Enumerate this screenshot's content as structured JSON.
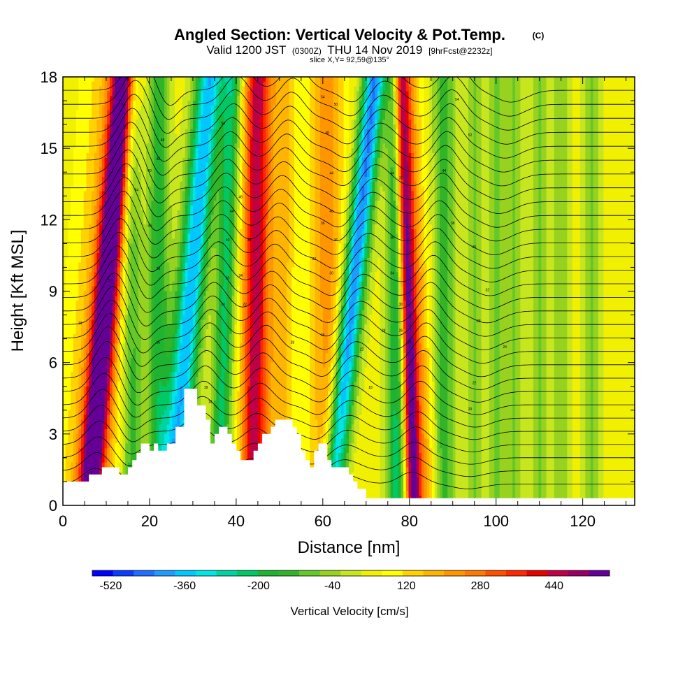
{
  "chart_data": {
    "type": "heatmap",
    "title": "Angled Section: Vertical Velocity & Pot.Temp.",
    "title_unit": "(C)",
    "subtitle": {
      "valid": "Valid 1200 JST",
      "utc": "(0300Z)",
      "date": "THU 14 Nov 2019",
      "fcst": "[9hrFcst@2232z]"
    },
    "slice_label": "slice X,Y= 92,59@135°",
    "xlabel": "Distance [nm]",
    "ylabel": "Height [Kft MSL]",
    "xlim": [
      0,
      132
    ],
    "ylim": [
      0,
      18
    ],
    "x_ticks": [
      {
        "value": 0,
        "label": "0"
      },
      {
        "value": 20,
        "label": "20"
      },
      {
        "value": 40,
        "label": "40"
      },
      {
        "value": 60,
        "label": "60"
      },
      {
        "value": 80,
        "label": "80"
      },
      {
        "value": 100,
        "label": "100"
      },
      {
        "value": 120,
        "label": "120"
      }
    ],
    "y_ticks": [
      {
        "value": 0,
        "label": "0"
      },
      {
        "value": 3,
        "label": "3"
      },
      {
        "value": 6,
        "label": "6"
      },
      {
        "value": 9,
        "label": "9"
      },
      {
        "value": 12,
        "label": "12"
      },
      {
        "value": 15,
        "label": "15"
      },
      {
        "value": 18,
        "label": "18"
      }
    ],
    "colorbar": {
      "label": "Vertical Velocity [cm/s]",
      "min": -560,
      "max": 560,
      "colors": [
        "#0000ff",
        "#0a3cff",
        "#1e6eff",
        "#1e9bff",
        "#00c8ff",
        "#00e6e6",
        "#00d2a0",
        "#00c864",
        "#1eb432",
        "#32b428",
        "#64c828",
        "#96d21e",
        "#c8e61e",
        "#f0f000",
        "#ffff00",
        "#ffd200",
        "#ffb400",
        "#ff9600",
        "#ff7800",
        "#ff5000",
        "#ff2800",
        "#e60000",
        "#be0046",
        "#960064",
        "#640096"
      ],
      "tick_labels": [
        {
          "value": -520,
          "label": "-520"
        },
        {
          "value": -360,
          "label": "-360"
        },
        {
          "value": -200,
          "label": "-200"
        },
        {
          "value": -40,
          "label": "-40"
        },
        {
          "value": 120,
          "label": "120"
        },
        {
          "value": 280,
          "label": "280"
        },
        {
          "value": 440,
          "label": "440"
        }
      ]
    },
    "velocity_bands": [
      {
        "x0": 6,
        "x1": 14,
        "width": 2.6,
        "amp": 540
      },
      {
        "x0": 6,
        "x1": 13,
        "width": 7,
        "amp": 150
      },
      {
        "x0": 16,
        "x1": 16,
        "width": 2.5,
        "amp": -200
      },
      {
        "x0": 22,
        "x1": 22,
        "width": 2.5,
        "amp": -220
      },
      {
        "x0": 25,
        "x1": 34,
        "width": 3.2,
        "amp": -420
      },
      {
        "x0": 36,
        "x1": 39,
        "width": 2.2,
        "amp": -260
      },
      {
        "x0": 44,
        "x1": 45,
        "width": 3.0,
        "amp": 420
      },
      {
        "x0": 50,
        "x1": 51,
        "width": 3.0,
        "amp": 140
      },
      {
        "x0": 61,
        "x1": 61,
        "width": 4.0,
        "amp": 180
      },
      {
        "x0": 62,
        "x1": 72,
        "width": 2.6,
        "amp": -470
      },
      {
        "x0": 77,
        "x1": 77,
        "width": 2.2,
        "amp": -260
      },
      {
        "x0": 81,
        "x1": 78,
        "width": 1.8,
        "amp": 500
      },
      {
        "x0": 84,
        "x1": 80,
        "width": 2.5,
        "amp": 150
      },
      {
        "x0": 88,
        "x1": 88,
        "width": 2.5,
        "amp": -180
      },
      {
        "x0": 95,
        "x1": 95,
        "width": 1.8,
        "amp": -110
      },
      {
        "x0": 100,
        "x1": 100,
        "width": 1.8,
        "amp": -120
      },
      {
        "x0": 104,
        "x1": 104,
        "width": 1.8,
        "amp": -110
      },
      {
        "x0": 110,
        "x1": 110,
        "width": 2.0,
        "amp": -110
      },
      {
        "x0": 115,
        "x1": 115,
        "width": 1.8,
        "amp": -100
      },
      {
        "x0": 122,
        "x1": 122,
        "width": 2.0,
        "amp": -110
      }
    ],
    "terrain": [
      [
        0,
        1.0
      ],
      [
        6,
        1.0
      ],
      [
        6,
        1.3
      ],
      [
        9,
        1.3
      ],
      [
        9,
        1.6
      ],
      [
        13,
        1.6
      ],
      [
        13,
        1.3
      ],
      [
        15,
        1.3
      ],
      [
        15,
        1.6
      ],
      [
        16,
        1.6
      ],
      [
        16,
        1.9
      ],
      [
        17,
        1.9
      ],
      [
        17,
        2.2
      ],
      [
        18,
        2.2
      ],
      [
        18,
        2.6
      ],
      [
        20,
        2.6
      ],
      [
        20,
        2.3
      ],
      [
        21,
        2.3
      ],
      [
        21,
        2.6
      ],
      [
        22,
        2.6
      ],
      [
        22,
        2.3
      ],
      [
        24,
        2.3
      ],
      [
        24,
        2.6
      ],
      [
        26,
        2.6
      ],
      [
        26,
        3.3
      ],
      [
        28,
        3.3
      ],
      [
        28,
        4.9
      ],
      [
        31,
        4.9
      ],
      [
        31,
        4.2
      ],
      [
        33,
        4.2
      ],
      [
        33,
        3.6
      ],
      [
        34,
        3.6
      ],
      [
        34,
        2.6
      ],
      [
        35,
        2.6
      ],
      [
        35,
        3.0
      ],
      [
        36,
        3.0
      ],
      [
        36,
        3.3
      ],
      [
        38,
        3.3
      ],
      [
        38,
        3.0
      ],
      [
        39,
        3.0
      ],
      [
        39,
        2.6
      ],
      [
        40,
        2.6
      ],
      [
        40,
        2.3
      ],
      [
        41,
        2.3
      ],
      [
        41,
        1.9
      ],
      [
        44,
        1.9
      ],
      [
        44,
        2.3
      ],
      [
        45,
        2.3
      ],
      [
        45,
        2.6
      ],
      [
        46,
        2.6
      ],
      [
        46,
        3.0
      ],
      [
        48,
        3.0
      ],
      [
        48,
        3.3
      ],
      [
        49,
        3.3
      ],
      [
        49,
        3.6
      ],
      [
        53,
        3.6
      ],
      [
        53,
        3.3
      ],
      [
        54,
        3.3
      ],
      [
        54,
        3.0
      ],
      [
        55,
        3.0
      ],
      [
        55,
        2.3
      ],
      [
        56,
        2.3
      ],
      [
        56,
        1.9
      ],
      [
        57,
        1.9
      ],
      [
        57,
        1.6
      ],
      [
        58,
        1.6
      ],
      [
        58,
        2.3
      ],
      [
        59,
        2.3
      ],
      [
        59,
        2.6
      ],
      [
        61,
        2.6
      ],
      [
        61,
        1.9
      ],
      [
        62,
        1.9
      ],
      [
        62,
        1.6
      ],
      [
        66,
        1.6
      ],
      [
        66,
        1.3
      ],
      [
        67,
        1.3
      ],
      [
        67,
        1.0
      ],
      [
        68,
        1.0
      ],
      [
        68,
        0.7
      ],
      [
        70,
        0.7
      ],
      [
        70,
        0.3
      ],
      [
        132,
        0.3
      ]
    ],
    "isentropes": {
      "count": 30,
      "base": 0.9,
      "spacing_low": 0.55,
      "spacing_growth": 0.035,
      "wave_centers": [
        {
          "x": 7,
          "amp": 1.6,
          "w": 4
        },
        {
          "x": 14,
          "amp": -0.7,
          "w": 3
        },
        {
          "x": 30,
          "amp": 1.2,
          "w": 4
        },
        {
          "x": 43,
          "amp": 1.1,
          "w": 4
        },
        {
          "x": 57,
          "amp": -0.6,
          "w": 4
        },
        {
          "x": 64,
          "amp": 1.0,
          "w": 5
        },
        {
          "x": 80,
          "amp": 1.2,
          "w": 4
        },
        {
          "x": 93,
          "amp": -0.5,
          "w": 5
        }
      ]
    },
    "contour_labels": [
      {
        "x": 14,
        "y": 16.8,
        "text": "54"
      },
      {
        "x": 23,
        "y": 15.3,
        "text": "48"
      },
      {
        "x": 22,
        "y": 14.5,
        "text": "42"
      },
      {
        "x": 20,
        "y": 14.0,
        "text": "40"
      },
      {
        "x": 14,
        "y": 13.8,
        "text": "36"
      },
      {
        "x": 17,
        "y": 13.2,
        "text": "34"
      },
      {
        "x": 20,
        "y": 11.7,
        "text": "30"
      },
      {
        "x": 22,
        "y": 9.9,
        "text": "28"
      },
      {
        "x": 11,
        "y": 9.4,
        "text": "24"
      },
      {
        "x": 4,
        "y": 7.6,
        "text": "18"
      },
      {
        "x": 22,
        "y": 6.8,
        "text": "16"
      },
      {
        "x": 37,
        "y": 16.0,
        "text": "54"
      },
      {
        "x": 41,
        "y": 12.9,
        "text": "48"
      },
      {
        "x": 39,
        "y": 12.3,
        "text": "44"
      },
      {
        "x": 38,
        "y": 11.1,
        "text": "40"
      },
      {
        "x": 43,
        "y": 11.1,
        "text": "38"
      },
      {
        "x": 41,
        "y": 9.6,
        "text": "34"
      },
      {
        "x": 38,
        "y": 9.5,
        "text": "30"
      },
      {
        "x": 37,
        "y": 8.4,
        "text": "26"
      },
      {
        "x": 42,
        "y": 8.4,
        "text": "22"
      },
      {
        "x": 33,
        "y": 4.9,
        "text": "18"
      },
      {
        "x": 34,
        "y": 4.3,
        "text": "18"
      },
      {
        "x": 60,
        "y": 17.1,
        "text": "54"
      },
      {
        "x": 63,
        "y": 16.8,
        "text": "50"
      },
      {
        "x": 61,
        "y": 15.6,
        "text": "48"
      },
      {
        "x": 62,
        "y": 13.9,
        "text": "44"
      },
      {
        "x": 62,
        "y": 12.3,
        "text": "40"
      },
      {
        "x": 60,
        "y": 11.8,
        "text": "36"
      },
      {
        "x": 63,
        "y": 11.1,
        "text": "36"
      },
      {
        "x": 58,
        "y": 10.3,
        "text": "32"
      },
      {
        "x": 62,
        "y": 9.7,
        "text": "30"
      },
      {
        "x": 53,
        "y": 6.8,
        "text": "28"
      },
      {
        "x": 60,
        "y": 7.1,
        "text": "26"
      },
      {
        "x": 69,
        "y": 6.5,
        "text": "22"
      },
      {
        "x": 71,
        "y": 4.9,
        "text": "18"
      },
      {
        "x": 76,
        "y": 13.9,
        "text": "44"
      },
      {
        "x": 78,
        "y": 13.7,
        "text": "38"
      },
      {
        "x": 76,
        "y": 11.2,
        "text": "36"
      },
      {
        "x": 76,
        "y": 9.7,
        "text": "34"
      },
      {
        "x": 78,
        "y": 8.4,
        "text": "30"
      },
      {
        "x": 74,
        "y": 7.3,
        "text": "28"
      },
      {
        "x": 78,
        "y": 7.3,
        "text": "26"
      },
      {
        "x": 80,
        "y": 6.8,
        "text": "24"
      },
      {
        "x": 91,
        "y": 17.0,
        "text": "54"
      },
      {
        "x": 94,
        "y": 15.5,
        "text": "52"
      },
      {
        "x": 88,
        "y": 14.0,
        "text": "44"
      },
      {
        "x": 90,
        "y": 11.8,
        "text": "38"
      },
      {
        "x": 95,
        "y": 10.8,
        "text": "36"
      },
      {
        "x": 98,
        "y": 9.0,
        "text": "32"
      },
      {
        "x": 96,
        "y": 7.7,
        "text": "28"
      },
      {
        "x": 102,
        "y": 6.6,
        "text": "24"
      },
      {
        "x": 95,
        "y": 5.1,
        "text": "22"
      },
      {
        "x": 94,
        "y": 4.0,
        "text": "20"
      }
    ]
  }
}
